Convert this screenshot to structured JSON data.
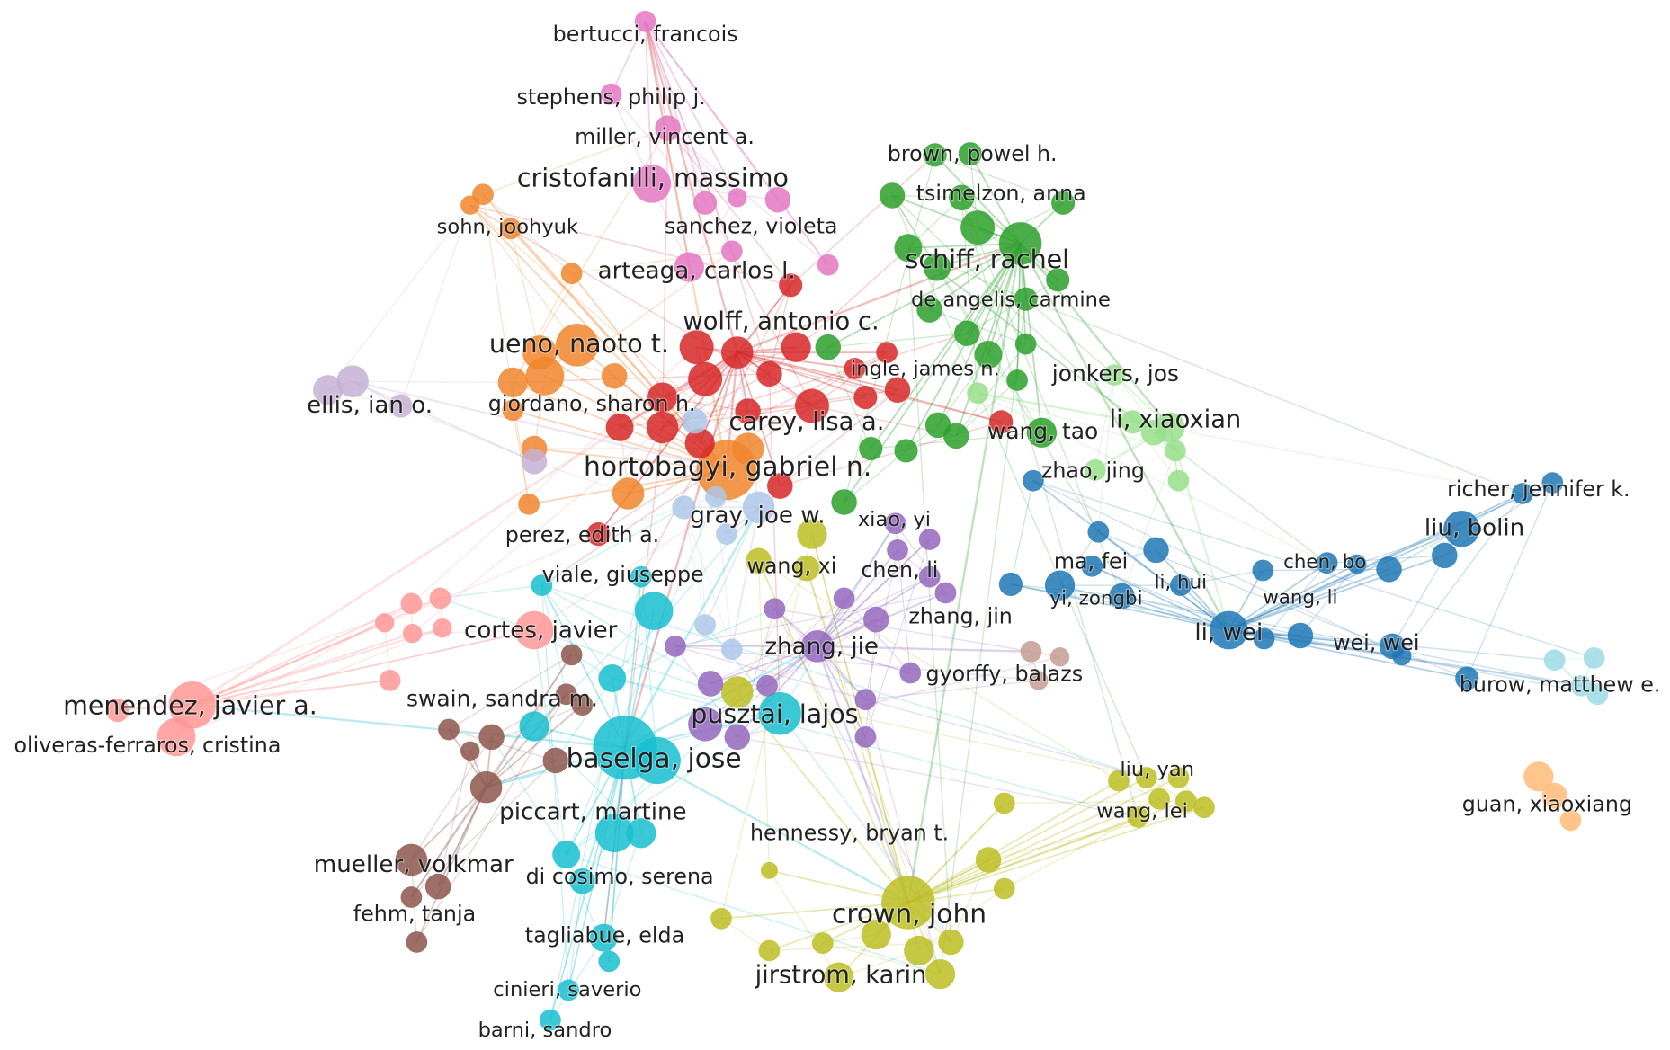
{
  "nodes": [
    {
      "label": "bertucci, francois"
    },
    {
      "label": "stephens, philip j."
    },
    {
      "label": "miller, vincent a."
    },
    {
      "label": "cristofanilli, massimo"
    },
    {
      "label": "sanchez, violeta"
    },
    {
      "label": "arteaga, carlos l."
    },
    {
      "label": "sohn, joohyuk"
    },
    {
      "label": "ueno, naoto t."
    },
    {
      "label": "giordano, sharon h."
    },
    {
      "label": "ellis, ian o."
    },
    {
      "label": "wolff, antonio c."
    },
    {
      "label": "carey, lisa a."
    },
    {
      "label": "hortobagyi, gabriel n."
    },
    {
      "label": "ingle, james n."
    },
    {
      "label": "perez, edith a."
    },
    {
      "label": "brown, powel h."
    },
    {
      "label": "tsimelzon, anna"
    },
    {
      "label": "schiff, rachel"
    },
    {
      "label": "de angelis, carmine"
    },
    {
      "label": "wang, tao"
    },
    {
      "label": "jonkers, jos"
    },
    {
      "label": "li, xiaoxian"
    },
    {
      "label": "zhao, jing"
    },
    {
      "label": "gray, joe w."
    },
    {
      "label": "xiao, yi"
    },
    {
      "label": "wang, xi"
    },
    {
      "label": "chen, li"
    },
    {
      "label": "viale, giuseppe"
    },
    {
      "label": "cortes, javier"
    },
    {
      "label": "zhang, jin"
    },
    {
      "label": "zhang, jie"
    },
    {
      "label": "gyorffy, balazs"
    },
    {
      "label": "menendez, javier a."
    },
    {
      "label": "oliveras-ferraros, cristina"
    },
    {
      "label": "swain, sandra m."
    },
    {
      "label": "pusztai, lajos"
    },
    {
      "label": "baselga, jose"
    },
    {
      "label": "piccart, martine"
    },
    {
      "label": "hennessy, bryan t."
    },
    {
      "label": "mueller, volkmar"
    },
    {
      "label": "di cosimo, serena"
    },
    {
      "label": "fehm, tanja"
    },
    {
      "label": "crown, john"
    },
    {
      "label": "tagliabue, elda"
    },
    {
      "label": "jirstrom, karin"
    },
    {
      "label": "cinieri, saverio"
    },
    {
      "label": "barni, sandro"
    },
    {
      "label": "richer, jennifer k."
    },
    {
      "label": "liu, bolin"
    },
    {
      "label": "chen, bo"
    },
    {
      "label": "ma, fei"
    },
    {
      "label": "li, hui"
    },
    {
      "label": "yi, zongbi"
    },
    {
      "label": "wang, li"
    },
    {
      "label": "li, wei"
    },
    {
      "label": "wei, wei"
    },
    {
      "label": "burow, matthew e."
    },
    {
      "label": "liu, yan"
    },
    {
      "label": "wang, lei"
    },
    {
      "label": "guan, xiaoxiang"
    }
  ]
}
